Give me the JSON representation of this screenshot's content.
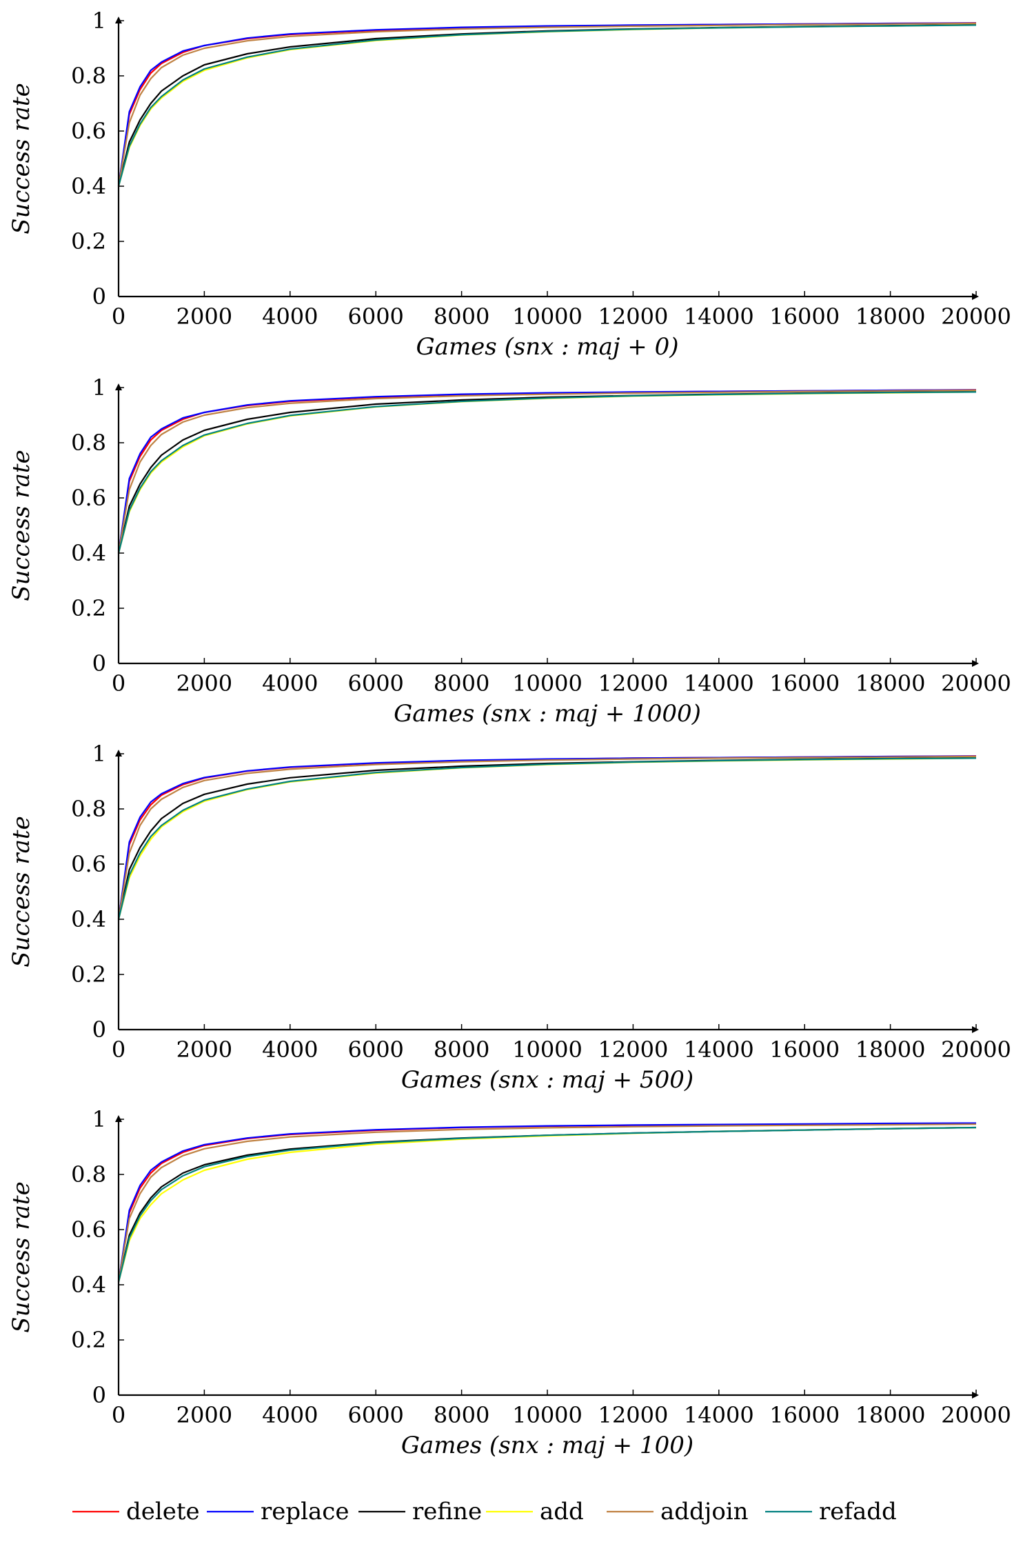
{
  "chart_data": [
    {
      "type": "line",
      "xlabel": "Games (snx : maj + 0)",
      "ylabel": "Success rate",
      "xlim": [
        0,
        20000
      ],
      "ylim": [
        0,
        1
      ],
      "xticks": [
        0,
        2000,
        4000,
        6000,
        8000,
        10000,
        12000,
        14000,
        16000,
        18000,
        20000
      ],
      "yticks": [
        0,
        0.2,
        0.4,
        0.6,
        0.8,
        1
      ],
      "ytick_labels": [
        "0",
        "0.2",
        "0.4",
        "0.6",
        "0.8",
        "1"
      ],
      "x": [
        0,
        250,
        500,
        750,
        1000,
        1500,
        2000,
        3000,
        4000,
        6000,
        8000,
        10000,
        12000,
        14000,
        16000,
        18000,
        20000
      ],
      "series": [
        {
          "name": "delete",
          "color": "#ff0000",
          "values": [
            0.4,
            0.66,
            0.75,
            0.81,
            0.845,
            0.885,
            0.91,
            0.935,
            0.95,
            0.965,
            0.975,
            0.98,
            0.983,
            0.986,
            0.988,
            0.99,
            0.992
          ]
        },
        {
          "name": "replace",
          "color": "#0000ff",
          "values": [
            0.4,
            0.67,
            0.76,
            0.82,
            0.85,
            0.89,
            0.91,
            0.937,
            0.952,
            0.967,
            0.976,
            0.981,
            0.984,
            0.986,
            0.988,
            0.99,
            0.991
          ]
        },
        {
          "name": "refine",
          "color": "#000000",
          "values": [
            0.4,
            0.56,
            0.64,
            0.7,
            0.745,
            0.8,
            0.84,
            0.88,
            0.905,
            0.935,
            0.952,
            0.963,
            0.97,
            0.975,
            0.979,
            0.982,
            0.985
          ]
        },
        {
          "name": "add",
          "color": "#ffff00",
          "values": [
            0.4,
            0.54,
            0.62,
            0.68,
            0.72,
            0.78,
            0.82,
            0.865,
            0.895,
            0.928,
            0.948,
            0.96,
            0.968,
            0.974,
            0.978,
            0.981,
            0.984
          ]
        },
        {
          "name": "addjoin",
          "color": "#bf8040",
          "values": [
            0.4,
            0.63,
            0.73,
            0.79,
            0.83,
            0.875,
            0.9,
            0.927,
            0.943,
            0.96,
            0.97,
            0.976,
            0.98,
            0.983,
            0.986,
            0.988,
            0.99
          ]
        },
        {
          "name": "refadd",
          "color": "#008080",
          "values": [
            0.4,
            0.545,
            0.625,
            0.685,
            0.725,
            0.785,
            0.825,
            0.868,
            0.897,
            0.93,
            0.949,
            0.961,
            0.969,
            0.974,
            0.978,
            0.981,
            0.984
          ]
        }
      ]
    },
    {
      "type": "line",
      "xlabel": "Games (snx : maj + 1000)",
      "ylabel": "Success rate",
      "xlim": [
        0,
        20000
      ],
      "ylim": [
        0,
        1
      ],
      "xticks": [
        0,
        2000,
        4000,
        6000,
        8000,
        10000,
        12000,
        14000,
        16000,
        18000,
        20000
      ],
      "yticks": [
        0,
        0.2,
        0.4,
        0.6,
        0.8,
        1
      ],
      "ytick_labels": [
        "0",
        "0.2",
        "0.4",
        "0.6",
        "0.8",
        "1"
      ],
      "x": [
        0,
        250,
        500,
        750,
        1000,
        1500,
        2000,
        3000,
        4000,
        6000,
        8000,
        10000,
        12000,
        14000,
        16000,
        18000,
        20000
      ],
      "series": [
        {
          "name": "delete",
          "color": "#ff0000",
          "values": [
            0.4,
            0.66,
            0.75,
            0.81,
            0.845,
            0.885,
            0.91,
            0.935,
            0.95,
            0.965,
            0.975,
            0.98,
            0.983,
            0.986,
            0.988,
            0.99,
            0.992
          ]
        },
        {
          "name": "replace",
          "color": "#0000ff",
          "values": [
            0.4,
            0.67,
            0.76,
            0.82,
            0.85,
            0.89,
            0.91,
            0.937,
            0.952,
            0.967,
            0.976,
            0.981,
            0.984,
            0.986,
            0.988,
            0.99,
            0.991
          ]
        },
        {
          "name": "refine",
          "color": "#000000",
          "values": [
            0.4,
            0.57,
            0.65,
            0.71,
            0.755,
            0.81,
            0.845,
            0.885,
            0.91,
            0.94,
            0.955,
            0.965,
            0.971,
            0.976,
            0.98,
            0.983,
            0.986
          ]
        },
        {
          "name": "add",
          "color": "#ffff00",
          "values": [
            0.4,
            0.55,
            0.63,
            0.69,
            0.73,
            0.785,
            0.825,
            0.868,
            0.897,
            0.93,
            0.949,
            0.961,
            0.969,
            0.974,
            0.978,
            0.981,
            0.984
          ]
        },
        {
          "name": "addjoin",
          "color": "#bf8040",
          "values": [
            0.4,
            0.63,
            0.73,
            0.79,
            0.83,
            0.875,
            0.9,
            0.927,
            0.943,
            0.96,
            0.97,
            0.976,
            0.98,
            0.983,
            0.986,
            0.988,
            0.99
          ]
        },
        {
          "name": "refadd",
          "color": "#008080",
          "values": [
            0.4,
            0.555,
            0.635,
            0.695,
            0.735,
            0.79,
            0.828,
            0.87,
            0.899,
            0.931,
            0.95,
            0.962,
            0.97,
            0.975,
            0.979,
            0.982,
            0.984
          ]
        }
      ]
    },
    {
      "type": "line",
      "xlabel": "Games (snx : maj + 500)",
      "ylabel": "Success rate",
      "xlim": [
        0,
        20000
      ],
      "ylim": [
        0,
        1
      ],
      "xticks": [
        0,
        2000,
        4000,
        6000,
        8000,
        10000,
        12000,
        14000,
        16000,
        18000,
        20000
      ],
      "yticks": [
        0,
        0.2,
        0.4,
        0.6,
        0.8,
        1
      ],
      "ytick_labels": [
        "0",
        "0.2",
        "0.4",
        "0.6",
        "0.8",
        "1"
      ],
      "x": [
        0,
        250,
        500,
        750,
        1000,
        1500,
        2000,
        3000,
        4000,
        6000,
        8000,
        10000,
        12000,
        14000,
        16000,
        18000,
        20000
      ],
      "series": [
        {
          "name": "delete",
          "color": "#ff0000",
          "values": [
            0.4,
            0.67,
            0.76,
            0.815,
            0.85,
            0.888,
            0.912,
            0.937,
            0.951,
            0.966,
            0.975,
            0.98,
            0.984,
            0.986,
            0.988,
            0.99,
            0.992
          ]
        },
        {
          "name": "replace",
          "color": "#0000ff",
          "values": [
            0.4,
            0.68,
            0.77,
            0.825,
            0.855,
            0.892,
            0.914,
            0.938,
            0.952,
            0.967,
            0.976,
            0.981,
            0.984,
            0.986,
            0.988,
            0.99,
            0.991
          ]
        },
        {
          "name": "refine",
          "color": "#000000",
          "values": [
            0.4,
            0.58,
            0.66,
            0.72,
            0.765,
            0.82,
            0.853,
            0.89,
            0.913,
            0.94,
            0.955,
            0.965,
            0.971,
            0.976,
            0.98,
            0.983,
            0.986
          ]
        },
        {
          "name": "add",
          "color": "#ffff00",
          "values": [
            0.4,
            0.55,
            0.63,
            0.69,
            0.735,
            0.79,
            0.828,
            0.87,
            0.898,
            0.93,
            0.949,
            0.961,
            0.969,
            0.974,
            0.978,
            0.981,
            0.984
          ]
        },
        {
          "name": "addjoin",
          "color": "#bf8040",
          "values": [
            0.4,
            0.64,
            0.74,
            0.8,
            0.835,
            0.878,
            0.903,
            0.929,
            0.944,
            0.961,
            0.971,
            0.977,
            0.981,
            0.984,
            0.986,
            0.988,
            0.99
          ]
        },
        {
          "name": "refadd",
          "color": "#008080",
          "values": [
            0.4,
            0.56,
            0.64,
            0.7,
            0.74,
            0.795,
            0.832,
            0.872,
            0.9,
            0.932,
            0.95,
            0.962,
            0.97,
            0.975,
            0.979,
            0.982,
            0.984
          ]
        }
      ]
    },
    {
      "type": "line",
      "xlabel": "Games (snx : maj + 100)",
      "ylabel": "Success rate",
      "xlim": [
        0,
        20000
      ],
      "ylim": [
        0,
        1
      ],
      "xticks": [
        0,
        2000,
        4000,
        6000,
        8000,
        10000,
        12000,
        14000,
        16000,
        18000,
        20000
      ],
      "yticks": [
        0,
        0.2,
        0.4,
        0.6,
        0.8,
        1
      ],
      "ytick_labels": [
        "0",
        "0.2",
        "0.4",
        "0.6",
        "0.8",
        "1"
      ],
      "x": [
        0,
        250,
        500,
        750,
        1000,
        1500,
        2000,
        3000,
        4000,
        6000,
        8000,
        10000,
        12000,
        14000,
        16000,
        18000,
        20000
      ],
      "series": [
        {
          "name": "delete",
          "color": "#ff0000",
          "values": [
            0.41,
            0.66,
            0.75,
            0.805,
            0.84,
            0.88,
            0.905,
            0.93,
            0.945,
            0.96,
            0.97,
            0.975,
            0.978,
            0.98,
            0.982,
            0.984,
            0.985
          ]
        },
        {
          "name": "replace",
          "color": "#0000ff",
          "values": [
            0.41,
            0.67,
            0.76,
            0.815,
            0.845,
            0.885,
            0.908,
            0.932,
            0.947,
            0.962,
            0.971,
            0.976,
            0.979,
            0.981,
            0.983,
            0.985,
            0.986
          ]
        },
        {
          "name": "refine",
          "color": "#000000",
          "values": [
            0.41,
            0.58,
            0.66,
            0.715,
            0.755,
            0.805,
            0.835,
            0.87,
            0.892,
            0.917,
            0.932,
            0.942,
            0.95,
            0.956,
            0.961,
            0.966,
            0.97
          ]
        },
        {
          "name": "add",
          "color": "#ffff00",
          "values": [
            0.41,
            0.56,
            0.64,
            0.69,
            0.73,
            0.78,
            0.815,
            0.855,
            0.88,
            0.91,
            0.928,
            0.94,
            0.949,
            0.956,
            0.961,
            0.966,
            0.97
          ]
        },
        {
          "name": "addjoin",
          "color": "#bf8040",
          "values": [
            0.41,
            0.64,
            0.73,
            0.79,
            0.825,
            0.868,
            0.893,
            0.92,
            0.936,
            0.953,
            0.963,
            0.969,
            0.973,
            0.976,
            0.978,
            0.98,
            0.982
          ]
        },
        {
          "name": "refadd",
          "color": "#008080",
          "values": [
            0.41,
            0.57,
            0.65,
            0.705,
            0.745,
            0.795,
            0.828,
            0.865,
            0.888,
            0.915,
            0.931,
            0.942,
            0.95,
            0.956,
            0.961,
            0.966,
            0.97
          ]
        }
      ]
    }
  ],
  "legend": {
    "items": [
      {
        "label": "delete",
        "color": "#ff0000"
      },
      {
        "label": "replace",
        "color": "#0000ff"
      },
      {
        "label": "refine",
        "color": "#000000"
      },
      {
        "label": "add",
        "color": "#ffff00"
      },
      {
        "label": "addjoin",
        "color": "#bf8040"
      },
      {
        "label": "refadd",
        "color": "#008080"
      }
    ]
  }
}
